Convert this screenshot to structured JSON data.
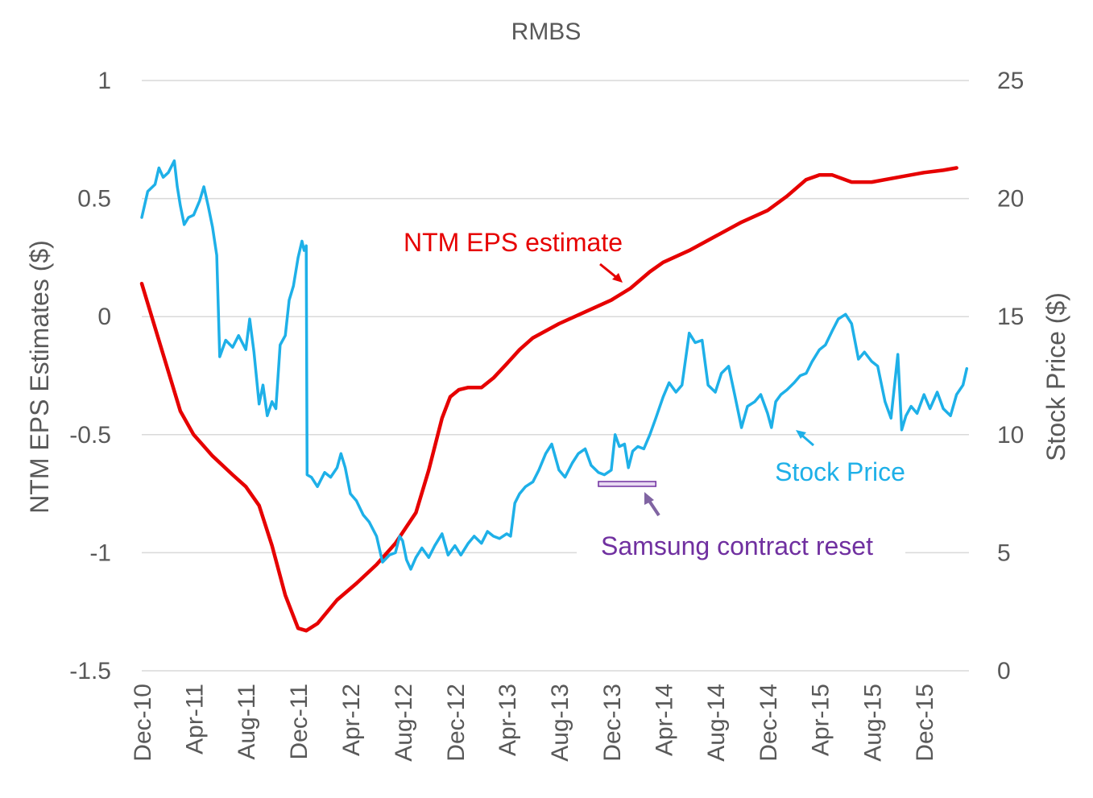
{
  "chart_data": {
    "type": "line",
    "title": "RMBS",
    "y_left_label": "NTM EPS Estimates ($)",
    "y_right_label": "Stock Price ($)",
    "y_left_ticks": [
      "1",
      "0.5",
      "0",
      "-0.5",
      "-1",
      "-1.5"
    ],
    "y_right_ticks": [
      "25",
      "20",
      "15",
      "10",
      "5",
      "0"
    ],
    "y_left_range": [
      -1.5,
      1
    ],
    "y_right_range": [
      0,
      25
    ],
    "x_range": [
      "2010-12-01",
      "2016-03-15"
    ],
    "x_tick_labels": [
      {
        "label": "Dec-10",
        "date": "2010-12-01"
      },
      {
        "label": "Apr-11",
        "date": "2011-04-01"
      },
      {
        "label": "Aug-11",
        "date": "2011-08-01"
      },
      {
        "label": "Dec-11",
        "date": "2011-12-01"
      },
      {
        "label": "Apr-12",
        "date": "2012-04-01"
      },
      {
        "label": "Aug-12",
        "date": "2012-08-01"
      },
      {
        "label": "Dec-12",
        "date": "2012-12-01"
      },
      {
        "label": "Apr-13",
        "date": "2013-04-01"
      },
      {
        "label": "Aug-13",
        "date": "2013-08-01"
      },
      {
        "label": "Dec-13",
        "date": "2013-12-01"
      },
      {
        "label": "Apr-14",
        "date": "2014-04-01"
      },
      {
        "label": "Aug-14",
        "date": "2014-08-01"
      },
      {
        "label": "Dec-14",
        "date": "2014-12-01"
      },
      {
        "label": "Apr-15",
        "date": "2015-04-01"
      },
      {
        "label": "Aug-15",
        "date": "2015-08-01"
      },
      {
        "label": "Dec-15",
        "date": "2015-12-01"
      }
    ],
    "grid": "horizontal",
    "series": [
      {
        "name": "NTM EPS estimate",
        "axis": "left",
        "color": "#e60000",
        "points": [
          [
            "2010-12-01",
            0.14
          ],
          [
            "2011-01-15",
            -0.13
          ],
          [
            "2011-03-01",
            -0.4
          ],
          [
            "2011-04-01",
            -0.5
          ],
          [
            "2011-05-15",
            -0.59
          ],
          [
            "2011-07-01",
            -0.67
          ],
          [
            "2011-08-01",
            -0.72
          ],
          [
            "2011-09-01",
            -0.8
          ],
          [
            "2011-10-01",
            -0.97
          ],
          [
            "2011-11-01",
            -1.18
          ],
          [
            "2011-12-01",
            -1.32
          ],
          [
            "2011-12-20",
            -1.33
          ],
          [
            "2012-01-15",
            -1.3
          ],
          [
            "2012-03-01",
            -1.2
          ],
          [
            "2012-04-15",
            -1.13
          ],
          [
            "2012-06-01",
            -1.05
          ],
          [
            "2012-07-15",
            -0.96
          ],
          [
            "2012-09-01",
            -0.83
          ],
          [
            "2012-10-01",
            -0.65
          ],
          [
            "2012-11-01",
            -0.43
          ],
          [
            "2012-11-20",
            -0.34
          ],
          [
            "2012-12-10",
            -0.31
          ],
          [
            "2013-01-01",
            -0.3
          ],
          [
            "2013-02-01",
            -0.3
          ],
          [
            "2013-03-01",
            -0.26
          ],
          [
            "2013-04-01",
            -0.2
          ],
          [
            "2013-05-01",
            -0.14
          ],
          [
            "2013-06-01",
            -0.09
          ],
          [
            "2013-08-01",
            -0.03
          ],
          [
            "2013-10-01",
            0.02
          ],
          [
            "2013-12-01",
            0.07
          ],
          [
            "2014-01-15",
            0.12
          ],
          [
            "2014-03-01",
            0.19
          ],
          [
            "2014-04-01",
            0.23
          ],
          [
            "2014-06-01",
            0.28
          ],
          [
            "2014-08-01",
            0.34
          ],
          [
            "2014-10-01",
            0.4
          ],
          [
            "2014-12-01",
            0.45
          ],
          [
            "2015-01-15",
            0.51
          ],
          [
            "2015-03-01",
            0.58
          ],
          [
            "2015-04-01",
            0.6
          ],
          [
            "2015-05-01",
            0.6
          ],
          [
            "2015-06-15",
            0.57
          ],
          [
            "2015-08-01",
            0.57
          ],
          [
            "2015-10-01",
            0.59
          ],
          [
            "2015-12-01",
            0.61
          ],
          [
            "2016-01-15",
            0.62
          ],
          [
            "2016-02-15",
            0.63
          ]
        ]
      },
      {
        "name": "Stock Price",
        "axis": "right",
        "color": "#1eb0e8",
        "points": [
          [
            "2010-12-01",
            19.2
          ],
          [
            "2010-12-15",
            20.3
          ],
          [
            "2011-01-01",
            20.6
          ],
          [
            "2011-01-10",
            21.3
          ],
          [
            "2011-01-20",
            20.9
          ],
          [
            "2011-02-01",
            21.1
          ],
          [
            "2011-02-15",
            21.6
          ],
          [
            "2011-02-22",
            20.5
          ],
          [
            "2011-03-01",
            19.7
          ],
          [
            "2011-03-10",
            18.9
          ],
          [
            "2011-03-20",
            19.2
          ],
          [
            "2011-04-01",
            19.3
          ],
          [
            "2011-04-15",
            19.9
          ],
          [
            "2011-04-25",
            20.5
          ],
          [
            "2011-05-05",
            19.7
          ],
          [
            "2011-05-15",
            18.8
          ],
          [
            "2011-05-25",
            17.6
          ],
          [
            "2011-06-01",
            13.3
          ],
          [
            "2011-06-15",
            14.0
          ],
          [
            "2011-07-01",
            13.7
          ],
          [
            "2011-07-15",
            14.2
          ],
          [
            "2011-08-01",
            13.6
          ],
          [
            "2011-08-10",
            14.9
          ],
          [
            "2011-08-20",
            13.5
          ],
          [
            "2011-09-01",
            11.3
          ],
          [
            "2011-09-10",
            12.1
          ],
          [
            "2011-09-20",
            10.8
          ],
          [
            "2011-10-01",
            11.4
          ],
          [
            "2011-10-10",
            11.1
          ],
          [
            "2011-10-20",
            13.8
          ],
          [
            "2011-11-01",
            14.2
          ],
          [
            "2011-11-10",
            15.7
          ],
          [
            "2011-11-20",
            16.3
          ],
          [
            "2011-12-01",
            17.5
          ],
          [
            "2011-12-10",
            18.2
          ],
          [
            "2011-12-15",
            17.8
          ],
          [
            "2011-12-20",
            18.0
          ],
          [
            "2011-12-22",
            8.3
          ],
          [
            "2012-01-01",
            8.2
          ],
          [
            "2012-01-15",
            7.8
          ],
          [
            "2012-02-01",
            8.4
          ],
          [
            "2012-02-15",
            8.2
          ],
          [
            "2012-03-01",
            8.6
          ],
          [
            "2012-03-10",
            9.2
          ],
          [
            "2012-03-20",
            8.6
          ],
          [
            "2012-04-01",
            7.5
          ],
          [
            "2012-04-15",
            7.2
          ],
          [
            "2012-05-01",
            6.6
          ],
          [
            "2012-05-15",
            6.3
          ],
          [
            "2012-06-01",
            5.7
          ],
          [
            "2012-06-15",
            4.6
          ],
          [
            "2012-07-01",
            4.9
          ],
          [
            "2012-07-15",
            5.0
          ],
          [
            "2012-07-25",
            5.7
          ],
          [
            "2012-08-01",
            5.5
          ],
          [
            "2012-08-10",
            4.7
          ],
          [
            "2012-08-20",
            4.3
          ],
          [
            "2012-09-01",
            4.8
          ],
          [
            "2012-09-15",
            5.2
          ],
          [
            "2012-10-01",
            4.8
          ],
          [
            "2012-10-15",
            5.3
          ],
          [
            "2012-11-01",
            5.8
          ],
          [
            "2012-11-15",
            4.9
          ],
          [
            "2012-12-01",
            5.3
          ],
          [
            "2012-12-15",
            4.9
          ],
          [
            "2013-01-01",
            5.4
          ],
          [
            "2013-01-15",
            5.7
          ],
          [
            "2013-02-01",
            5.4
          ],
          [
            "2013-02-15",
            5.9
          ],
          [
            "2013-03-01",
            5.7
          ],
          [
            "2013-03-15",
            5.6
          ],
          [
            "2013-04-01",
            5.8
          ],
          [
            "2013-04-10",
            5.7
          ],
          [
            "2013-04-20",
            7.1
          ],
          [
            "2013-05-01",
            7.5
          ],
          [
            "2013-05-15",
            7.8
          ],
          [
            "2013-06-01",
            8.0
          ],
          [
            "2013-06-15",
            8.5
          ],
          [
            "2013-07-01",
            9.2
          ],
          [
            "2013-07-15",
            9.6
          ],
          [
            "2013-08-01",
            8.5
          ],
          [
            "2013-08-15",
            8.2
          ],
          [
            "2013-09-01",
            8.8
          ],
          [
            "2013-09-15",
            9.2
          ],
          [
            "2013-10-01",
            9.4
          ],
          [
            "2013-10-15",
            8.7
          ],
          [
            "2013-11-01",
            8.4
          ],
          [
            "2013-11-15",
            8.3
          ],
          [
            "2013-12-01",
            8.5
          ],
          [
            "2013-12-10",
            10.0
          ],
          [
            "2013-12-20",
            9.5
          ],
          [
            "2014-01-01",
            9.6
          ],
          [
            "2014-01-10",
            8.6
          ],
          [
            "2014-01-20",
            9.3
          ],
          [
            "2014-02-01",
            9.5
          ],
          [
            "2014-02-15",
            9.4
          ],
          [
            "2014-03-01",
            10.0
          ],
          [
            "2014-03-15",
            10.7
          ],
          [
            "2014-04-01",
            11.6
          ],
          [
            "2014-04-15",
            12.2
          ],
          [
            "2014-05-01",
            11.8
          ],
          [
            "2014-05-15",
            12.1
          ],
          [
            "2014-06-01",
            14.3
          ],
          [
            "2014-06-15",
            13.9
          ],
          [
            "2014-07-01",
            14.0
          ],
          [
            "2014-07-15",
            12.1
          ],
          [
            "2014-08-01",
            11.8
          ],
          [
            "2014-08-15",
            12.6
          ],
          [
            "2014-09-01",
            12.9
          ],
          [
            "2014-09-15",
            11.7
          ],
          [
            "2014-10-01",
            10.3
          ],
          [
            "2014-10-15",
            11.2
          ],
          [
            "2014-11-01",
            11.4
          ],
          [
            "2014-11-15",
            11.7
          ],
          [
            "2014-12-01",
            10.9
          ],
          [
            "2014-12-10",
            10.3
          ],
          [
            "2014-12-20",
            11.4
          ],
          [
            "2015-01-01",
            11.7
          ],
          [
            "2015-01-15",
            11.9
          ],
          [
            "2015-02-01",
            12.2
          ],
          [
            "2015-02-15",
            12.5
          ],
          [
            "2015-03-01",
            12.6
          ],
          [
            "2015-03-15",
            13.1
          ],
          [
            "2015-04-01",
            13.6
          ],
          [
            "2015-04-15",
            13.8
          ],
          [
            "2015-05-01",
            14.4
          ],
          [
            "2015-05-15",
            14.9
          ],
          [
            "2015-06-01",
            15.1
          ],
          [
            "2015-06-15",
            14.7
          ],
          [
            "2015-07-01",
            13.2
          ],
          [
            "2015-07-15",
            13.5
          ],
          [
            "2015-08-01",
            13.1
          ],
          [
            "2015-08-15",
            12.9
          ],
          [
            "2015-09-01",
            11.4
          ],
          [
            "2015-09-15",
            10.7
          ],
          [
            "2015-10-01",
            13.4
          ],
          [
            "2015-10-10",
            10.2
          ],
          [
            "2015-10-20",
            10.8
          ],
          [
            "2015-11-01",
            11.2
          ],
          [
            "2015-11-15",
            10.9
          ],
          [
            "2015-12-01",
            11.7
          ],
          [
            "2015-12-15",
            11.1
          ],
          [
            "2016-01-01",
            11.8
          ],
          [
            "2016-01-15",
            11.1
          ],
          [
            "2016-02-01",
            10.8
          ],
          [
            "2016-02-15",
            11.7
          ],
          [
            "2016-03-01",
            12.1
          ],
          [
            "2016-03-10",
            12.8
          ]
        ]
      }
    ],
    "annotations": [
      {
        "text": "NTM EPS estimate",
        "color": "#e60000",
        "points_to": "NTM EPS estimate line"
      },
      {
        "text": "Stock Price",
        "color": "#1eb0e8",
        "points_to": "Stock Price line"
      },
      {
        "text": "Samsung contract reset",
        "color": "#7030a0",
        "points_to": "bracket",
        "bracket_start": "2013-11-01",
        "bracket_end": "2014-03-15"
      }
    ]
  }
}
